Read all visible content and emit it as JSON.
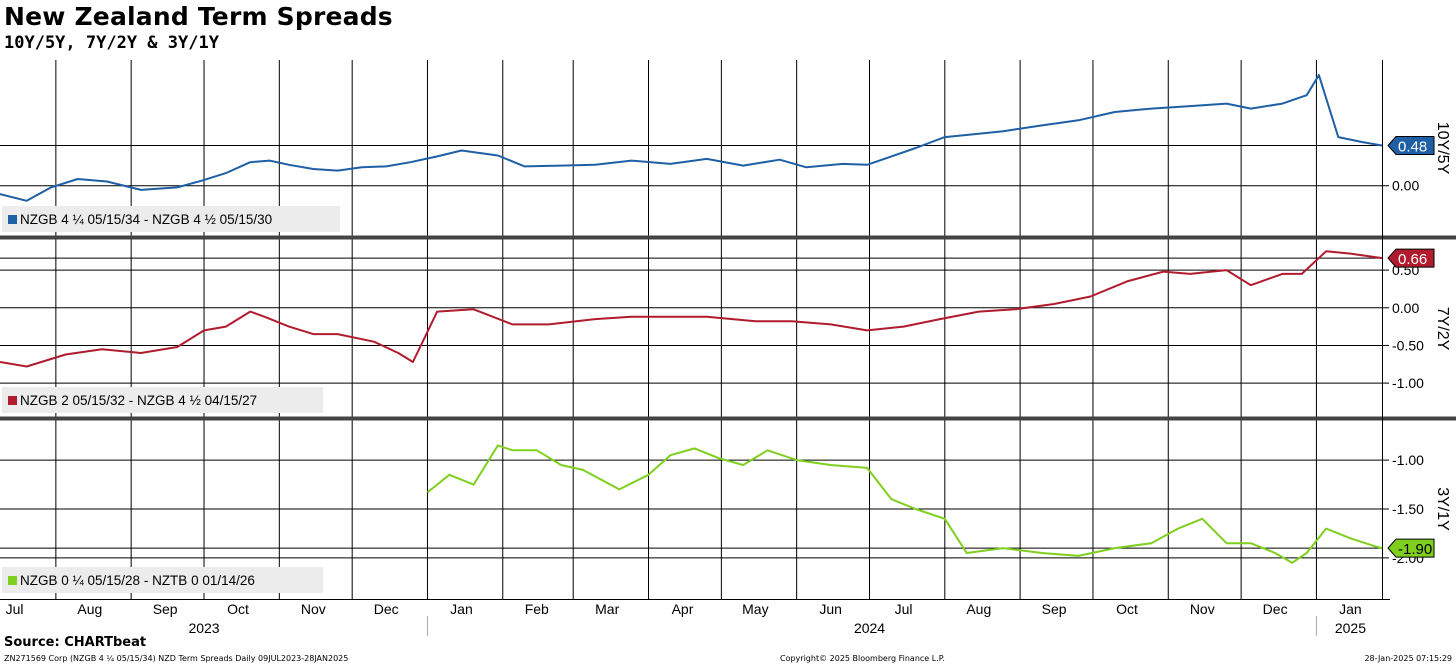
{
  "header": {
    "title": "New Zealand Term Spreads",
    "subtitle": "10Y/5Y, 7Y/2Y & 3Y/1Y"
  },
  "footer": {
    "source": "Source: CHARTbeat",
    "left": "ZN271569 Corp (NZGB 4 ¼ 05/15/34) NZD Term Spreads  Daily 09JUL2023-28JAN2025",
    "center": "Copyright© 2025 Bloomberg Finance L.P.",
    "right": "28-Jan-2025 07:15:29"
  },
  "chart_data": [
    {
      "type": "line",
      "panel_label": "10Y/5Y",
      "series": [
        {
          "name": "NZGB 4 ¼ 05/15/34 - NZGB 4 ½ 05/15/30",
          "color": "#1f5fa6",
          "last_value": "0.48",
          "x": [
            "2023-07-09",
            "2023-07-20",
            "2023-07-30",
            "2023-08-10",
            "2023-08-22",
            "2023-09-05",
            "2023-09-20",
            "2023-09-30",
            "2023-10-10",
            "2023-10-20",
            "2023-10-28",
            "2023-11-05",
            "2023-11-15",
            "2023-11-25",
            "2023-12-05",
            "2023-12-15",
            "2023-12-25",
            "2024-01-05",
            "2024-01-15",
            "2024-01-30",
            "2024-02-10",
            "2024-02-25",
            "2024-03-10",
            "2024-03-25",
            "2024-04-10",
            "2024-04-25",
            "2024-05-10",
            "2024-05-25",
            "2024-06-05",
            "2024-06-20",
            "2024-06-30",
            "2024-07-10",
            "2024-07-20",
            "2024-08-01",
            "2024-08-15",
            "2024-08-25",
            "2024-09-10",
            "2024-09-25",
            "2024-10-10",
            "2024-10-25",
            "2024-11-10",
            "2024-11-25",
            "2024-12-05",
            "2024-12-18",
            "2024-12-28",
            "2025-01-02",
            "2025-01-10",
            "2025-01-20",
            "2025-01-28"
          ],
          "values": [
            -0.1,
            -0.18,
            -0.02,
            0.08,
            0.05,
            -0.05,
            -0.02,
            0.06,
            0.15,
            0.28,
            0.3,
            0.25,
            0.2,
            0.18,
            0.22,
            0.23,
            0.28,
            0.35,
            0.42,
            0.36,
            0.23,
            0.24,
            0.25,
            0.3,
            0.26,
            0.32,
            0.24,
            0.31,
            0.22,
            0.26,
            0.25,
            0.35,
            0.45,
            0.58,
            0.62,
            0.65,
            0.72,
            0.78,
            0.88,
            0.92,
            0.95,
            0.98,
            0.92,
            0.98,
            1.08,
            1.32,
            0.58,
            0.52,
            0.48
          ]
        }
      ],
      "y_ticks": [
        "0.00"
      ],
      "ylim": [
        -0.6,
        1.5
      ],
      "grid": true
    },
    {
      "type": "line",
      "panel_label": "7Y/2Y",
      "series": [
        {
          "name": "NZGB 2 05/15/32 - NZGB 4 ½ 04/15/27",
          "color": "#b01c2e",
          "last_value": "0.66",
          "x": [
            "2023-07-09",
            "2023-07-20",
            "2023-08-05",
            "2023-08-20",
            "2023-09-05",
            "2023-09-20",
            "2023-10-01",
            "2023-10-10",
            "2023-10-20",
            "2023-10-26",
            "2023-11-05",
            "2023-11-15",
            "2023-11-25",
            "2023-12-10",
            "2023-12-20",
            "2023-12-26",
            "2024-01-05",
            "2024-01-20",
            "2024-02-05",
            "2024-02-20",
            "2024-03-10",
            "2024-03-25",
            "2024-04-10",
            "2024-04-25",
            "2024-05-15",
            "2024-05-30",
            "2024-06-15",
            "2024-06-30",
            "2024-07-15",
            "2024-07-30",
            "2024-08-15",
            "2024-08-30",
            "2024-09-15",
            "2024-09-30",
            "2024-10-15",
            "2024-10-30",
            "2024-11-10",
            "2024-11-25",
            "2024-12-05",
            "2024-12-18",
            "2024-12-26",
            "2025-01-05",
            "2025-01-15",
            "2025-01-28"
          ],
          "values": [
            -0.72,
            -0.78,
            -0.62,
            -0.55,
            -0.6,
            -0.52,
            -0.3,
            -0.25,
            -0.05,
            -0.12,
            -0.25,
            -0.35,
            -0.35,
            -0.45,
            -0.6,
            -0.72,
            -0.05,
            -0.02,
            -0.22,
            -0.22,
            -0.15,
            -0.12,
            -0.12,
            -0.12,
            -0.18,
            -0.18,
            -0.22,
            -0.3,
            -0.25,
            -0.15,
            -0.05,
            -0.02,
            0.05,
            0.15,
            0.35,
            0.48,
            0.45,
            0.5,
            0.3,
            0.45,
            0.45,
            0.75,
            0.72,
            0.66
          ]
        }
      ],
      "y_ticks": [
        "0.50",
        "0.00",
        "-0.50",
        "-1.00"
      ],
      "ylim": [
        -1.45,
        0.9
      ],
      "grid": true
    },
    {
      "type": "line",
      "panel_label": "3Y/1Y",
      "series": [
        {
          "name": "NZGB 0 ¼ 05/15/28 - NZTB 0 01/14/26",
          "color": "#7fcf1e",
          "last_value": "-1.90",
          "x": [
            "2024-01-01",
            "2024-01-10",
            "2024-01-20",
            "2024-01-30",
            "2024-02-05",
            "2024-02-15",
            "2024-02-25",
            "2024-03-05",
            "2024-03-20",
            "2024-04-01",
            "2024-04-10",
            "2024-04-20",
            "2024-04-30",
            "2024-05-10",
            "2024-05-20",
            "2024-06-01",
            "2024-06-15",
            "2024-06-30",
            "2024-07-10",
            "2024-07-20",
            "2024-08-01",
            "2024-08-10",
            "2024-08-25",
            "2024-09-10",
            "2024-09-25",
            "2024-10-10",
            "2024-10-25",
            "2024-11-05",
            "2024-11-15",
            "2024-11-25",
            "2024-12-05",
            "2024-12-15",
            "2024-12-22",
            "2024-12-28",
            "2025-01-05",
            "2025-01-15",
            "2025-01-25",
            "2025-01-28"
          ],
          "values": [
            -1.33,
            -1.15,
            -1.25,
            -0.85,
            -0.9,
            -0.9,
            -1.05,
            -1.1,
            -1.3,
            -1.15,
            -0.95,
            -0.88,
            -0.98,
            -1.05,
            -0.9,
            -1.0,
            -1.05,
            -1.08,
            -1.4,
            -1.5,
            -1.6,
            -1.95,
            -1.9,
            -1.95,
            -1.98,
            -1.9,
            -1.85,
            -1.7,
            -1.6,
            -1.85,
            -1.85,
            -1.95,
            -2.05,
            -1.95,
            -1.7,
            -1.8,
            -1.88,
            -1.9
          ]
        }
      ],
      "y_ticks": [
        "-1.00",
        "-1.50",
        "-2.00"
      ],
      "ylim": [
        -2.4,
        -0.6
      ],
      "grid": true
    }
  ],
  "x_axis": {
    "months": [
      {
        "label": "Jul",
        "date": "2023-07-15"
      },
      {
        "label": "Aug",
        "date": "2023-08-15"
      },
      {
        "label": "Sep",
        "date": "2023-09-15"
      },
      {
        "label": "Oct",
        "date": "2023-10-15"
      },
      {
        "label": "Nov",
        "date": "2023-11-15"
      },
      {
        "label": "Dec",
        "date": "2023-12-15"
      },
      {
        "label": "Jan",
        "date": "2024-01-15"
      },
      {
        "label": "Feb",
        "date": "2024-02-15"
      },
      {
        "label": "Mar",
        "date": "2024-03-15"
      },
      {
        "label": "Apr",
        "date": "2024-04-15"
      },
      {
        "label": "May",
        "date": "2024-05-15"
      },
      {
        "label": "Jun",
        "date": "2024-06-15"
      },
      {
        "label": "Jul",
        "date": "2024-07-15"
      },
      {
        "label": "Aug",
        "date": "2024-08-15"
      },
      {
        "label": "Sep",
        "date": "2024-09-15"
      },
      {
        "label": "Oct",
        "date": "2024-10-15"
      },
      {
        "label": "Nov",
        "date": "2024-11-15"
      },
      {
        "label": "Dec",
        "date": "2024-12-15"
      },
      {
        "label": "Jan",
        "date": "2025-01-15"
      }
    ],
    "month_boundaries": [
      "2023-08-01",
      "2023-09-01",
      "2023-10-01",
      "2023-11-01",
      "2023-12-01",
      "2024-01-01",
      "2024-02-01",
      "2024-03-01",
      "2024-04-01",
      "2024-05-01",
      "2024-06-01",
      "2024-07-01",
      "2024-08-01",
      "2024-09-01",
      "2024-10-01",
      "2024-11-01",
      "2024-12-01",
      "2025-01-01"
    ],
    "years": [
      {
        "label": "2023",
        "date": "2023-10-01"
      },
      {
        "label": "2024",
        "date": "2024-07-01"
      },
      {
        "label": "2025",
        "date": "2025-01-15"
      }
    ],
    "range": [
      "2023-07-09",
      "2025-01-28"
    ]
  }
}
